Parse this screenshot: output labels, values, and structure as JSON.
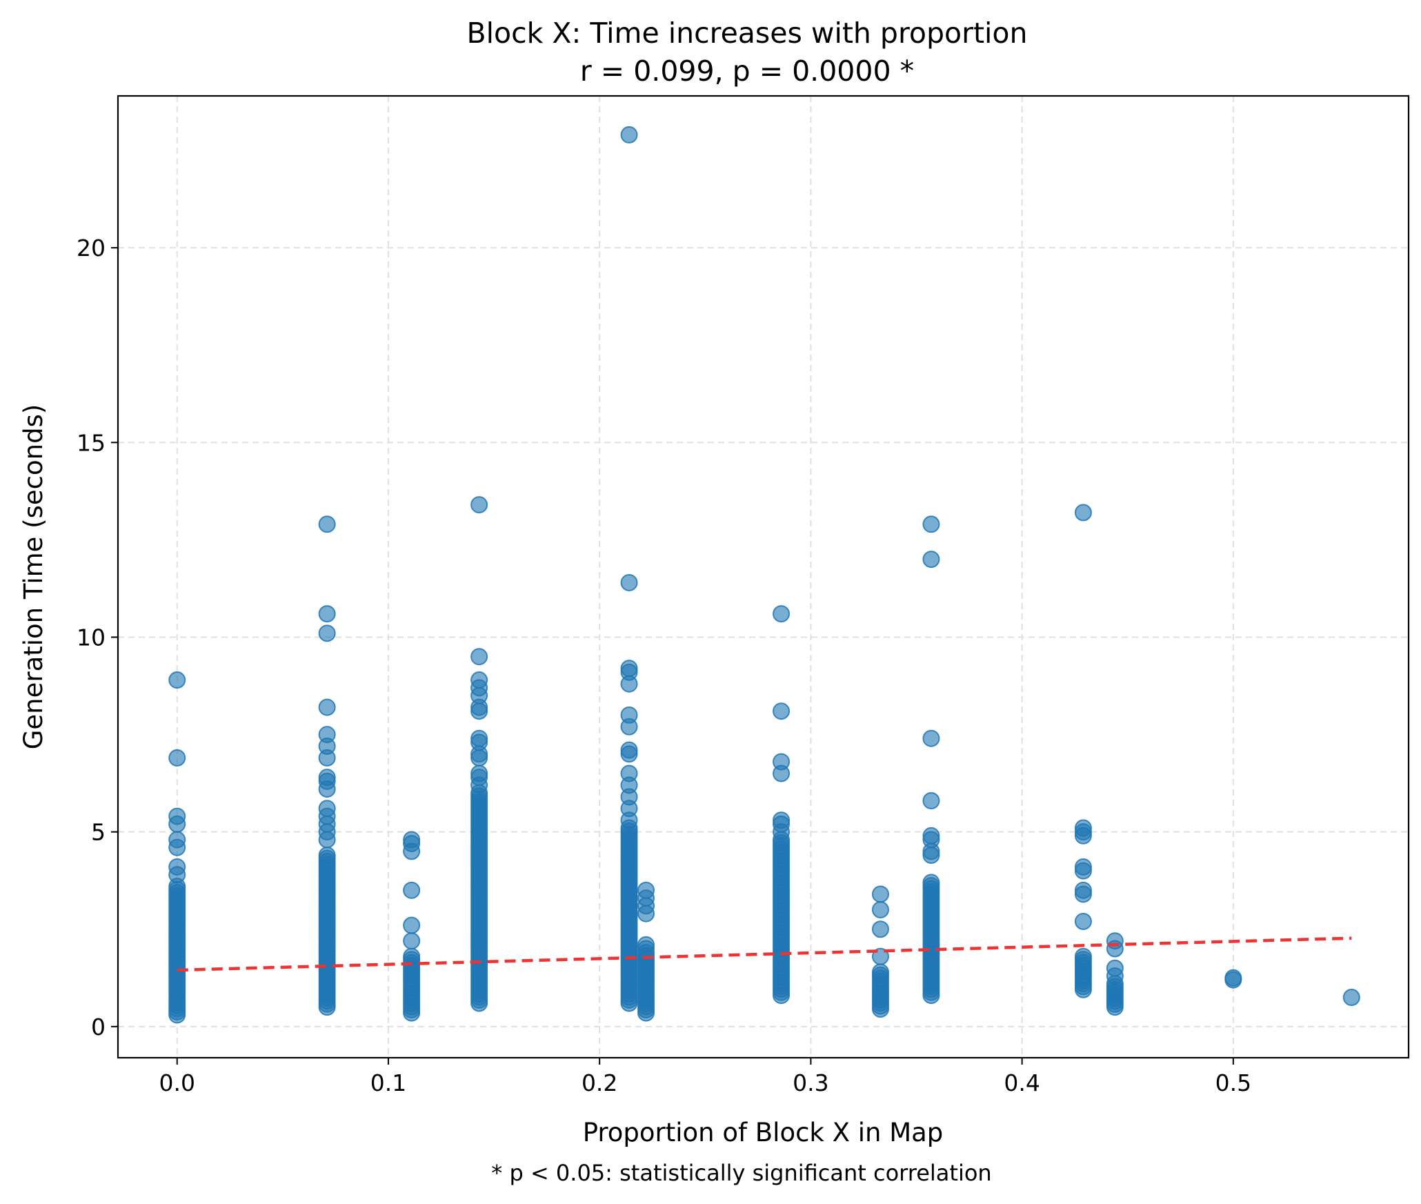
{
  "chart_data": {
    "type": "scatter",
    "title": "Block X: Time increases with proportion",
    "subtitle": "r = 0.099, p = 0.0000 *",
    "xlabel": "Proportion of Block X in Map",
    "ylabel": "Generation Time (seconds)",
    "footnote": "* p < 0.05: statistically significant correlation",
    "xlim": [
      -0.028,
      0.583
    ],
    "ylim": [
      -0.8,
      23.9
    ],
    "grid": true,
    "x_ticks": [
      0.0,
      0.1,
      0.2,
      0.3,
      0.4,
      0.5
    ],
    "x_tick_labels": [
      "0.0",
      "0.1",
      "0.2",
      "0.3",
      "0.4",
      "0.5"
    ],
    "y_ticks": [
      0,
      5,
      10,
      15,
      20
    ],
    "y_tick_labels": [
      "0",
      "5",
      "10",
      "15",
      "20"
    ],
    "point_color": "#1f77b4",
    "trend_color": "#ee3333",
    "trend_line": {
      "x": [
        0.0,
        0.556
      ],
      "y": [
        1.45,
        2.27
      ],
      "style": "dashed"
    },
    "groups": [
      {
        "x": 0.0,
        "outliers": [
          8.9,
          6.9,
          5.4,
          5.2,
          4.8,
          4.6,
          4.1,
          3.9
        ],
        "range": [
          0.3,
          3.6
        ]
      },
      {
        "x": 0.071,
        "outliers": [
          12.9,
          10.6,
          10.1,
          8.2,
          7.5,
          7.2,
          6.9,
          6.4,
          6.3,
          6.1,
          5.6,
          5.4,
          5.2,
          5.0,
          4.8
        ],
        "range": [
          0.5,
          4.4
        ]
      },
      {
        "x": 0.111,
        "outliers": [
          4.8,
          4.7,
          4.5,
          3.5,
          2.6,
          2.2
        ],
        "range": [
          0.35,
          1.8
        ]
      },
      {
        "x": 0.143,
        "outliers": [
          13.4,
          9.5,
          8.9,
          8.7,
          8.5,
          8.2,
          8.1,
          7.4,
          7.3,
          7.0,
          6.9,
          6.5,
          6.4,
          6.2
        ],
        "range": [
          0.6,
          6.0
        ]
      },
      {
        "x": 0.214,
        "outliers": [
          22.9,
          11.4,
          9.2,
          9.1,
          8.8,
          8.0,
          7.7,
          7.1,
          7.0,
          6.5,
          6.2,
          5.9,
          5.6,
          5.3
        ],
        "range": [
          0.6,
          5.1
        ]
      },
      {
        "x": 0.222,
        "outliers": [
          3.5,
          3.3,
          3.1,
          2.9,
          2.1,
          2.0
        ],
        "range": [
          0.35,
          1.9
        ]
      },
      {
        "x": 0.286,
        "outliers": [
          10.6,
          8.1,
          6.8,
          6.5,
          5.3,
          5.2,
          5.0
        ],
        "range": [
          0.8,
          4.8
        ]
      },
      {
        "x": 0.333,
        "outliers": [
          3.4,
          3.0,
          2.5,
          1.8
        ],
        "range": [
          0.45,
          1.4
        ]
      },
      {
        "x": 0.357,
        "outliers": [
          12.9,
          12.0,
          7.4,
          5.8,
          4.9,
          4.8,
          4.5,
          4.4
        ],
        "range": [
          0.8,
          3.7
        ]
      },
      {
        "x": 0.429,
        "outliers": [
          13.2,
          5.1,
          5.0,
          4.9,
          4.1,
          4.0,
          3.5,
          3.4,
          2.7
        ],
        "range": [
          0.95,
          1.8
        ]
      },
      {
        "x": 0.444,
        "outliers": [
          2.2,
          2.0,
          1.5,
          1.3
        ],
        "range": [
          0.5,
          1.1
        ]
      },
      {
        "x": 0.5,
        "outliers": [
          1.25,
          1.2
        ],
        "range": [
          1.2,
          1.2
        ]
      },
      {
        "x": 0.556,
        "outliers": [
          0.75
        ],
        "range": [
          0.75,
          0.75
        ]
      }
    ]
  }
}
